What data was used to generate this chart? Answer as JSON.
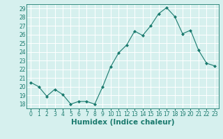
{
  "x": [
    0,
    1,
    2,
    3,
    4,
    5,
    6,
    7,
    8,
    9,
    10,
    11,
    12,
    13,
    14,
    15,
    16,
    17,
    18,
    19,
    20,
    21,
    22,
    23
  ],
  "y": [
    20.5,
    20.0,
    18.9,
    19.7,
    19.1,
    18.0,
    18.3,
    18.3,
    18.0,
    20.0,
    22.3,
    23.9,
    24.8,
    26.4,
    25.9,
    27.0,
    28.4,
    29.1,
    28.1,
    26.1,
    26.5,
    24.2,
    22.7,
    22.4
  ],
  "xlabel": "Humidex (Indice chaleur)",
  "ylabel_ticks": [
    18,
    19,
    20,
    21,
    22,
    23,
    24,
    25,
    26,
    27,
    28,
    29
  ],
  "xtick_labels": [
    "0",
    "1",
    "2",
    "3",
    "4",
    "5",
    "6",
    "7",
    "8",
    "9",
    "10",
    "11",
    "12",
    "13",
    "14",
    "15",
    "16",
    "17",
    "18",
    "19",
    "20",
    "21",
    "22",
    "23"
  ],
  "ylim": [
    17.5,
    29.5
  ],
  "xlim": [
    -0.5,
    23.5
  ],
  "line_color": "#1a7a6e",
  "marker_color": "#1a7a6e",
  "bg_color": "#d6f0ee",
  "grid_color": "#ffffff",
  "tick_label_color": "#1a7a6e",
  "xlabel_color": "#1a7a6e",
  "tick_fontsize": 5.5,
  "xlabel_fontsize": 7.5
}
